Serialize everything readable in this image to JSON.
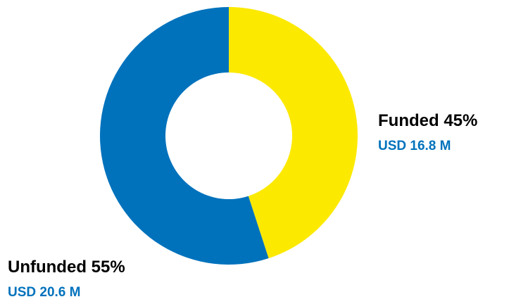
{
  "chart_data": {
    "type": "pie",
    "donut": true,
    "slices": [
      {
        "name": "Funded",
        "percent": "45%",
        "value": 45,
        "amount": "USD 16.8 M",
        "color": "#FCE900"
      },
      {
        "name": "Unfunded",
        "percent": "55%",
        "value": 55,
        "amount": "USD 20.6 M",
        "color": "#0072BC"
      }
    ],
    "start_angle_deg": 0,
    "direction": "clockwise",
    "amount_text_color": "#0072BC",
    "label_text_color": "#000000"
  }
}
